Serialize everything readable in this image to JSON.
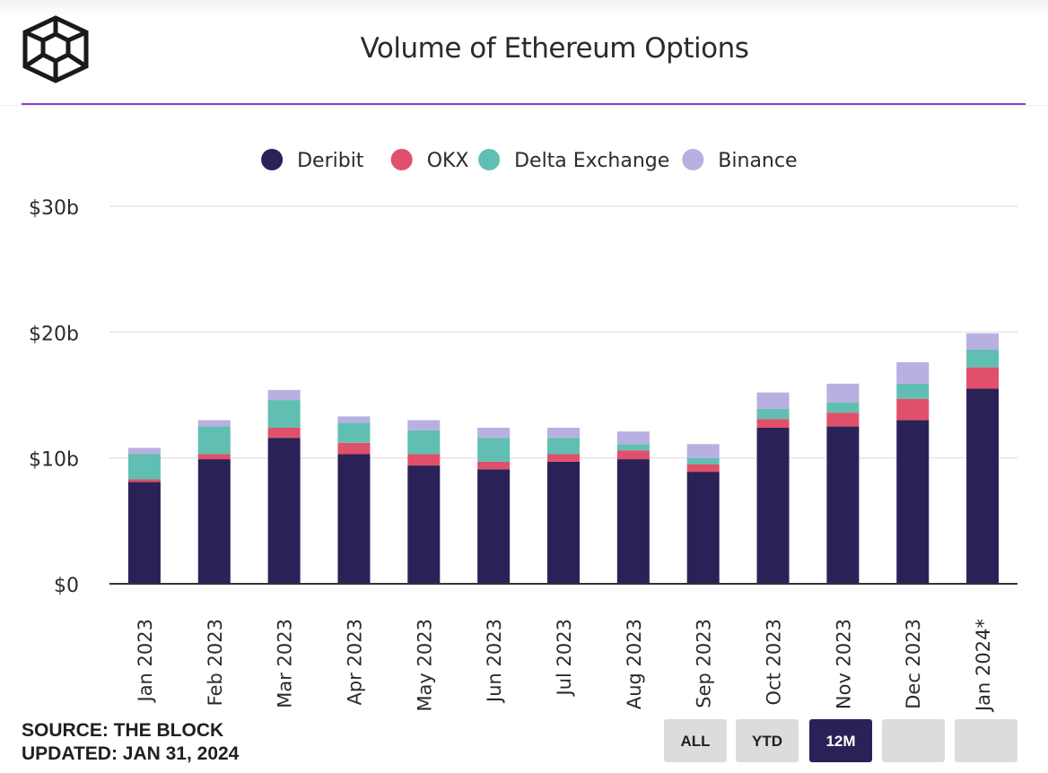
{
  "header": {
    "title": "Volume of Ethereum Options"
  },
  "logo": {
    "icon": "the-block-cube-logo"
  },
  "chart_data": {
    "type": "bar",
    "stacked": true,
    "title": "Volume of Ethereum Options",
    "categories": [
      "Jan 2023",
      "Feb 2023",
      "Mar 2023",
      "Apr 2023",
      "May 2023",
      "Jun 2023",
      "Jul 2023",
      "Aug 2023",
      "Sep 2023",
      "Oct 2023",
      "Nov 2023",
      "Dec 2023",
      "Jan 2024*"
    ],
    "series": [
      {
        "name": "Deribit",
        "color": "#2a2257",
        "values": [
          8.1,
          9.9,
          11.6,
          10.3,
          9.4,
          9.1,
          9.7,
          9.9,
          8.9,
          12.4,
          12.5,
          13.0,
          15.5
        ]
      },
      {
        "name": "OKX",
        "color": "#e0506a",
        "values": [
          0.2,
          0.4,
          0.8,
          0.9,
          0.9,
          0.6,
          0.6,
          0.7,
          0.6,
          0.7,
          1.1,
          1.7,
          1.7
        ]
      },
      {
        "name": "Delta Exchange",
        "color": "#60bfb2",
        "values": [
          2.0,
          2.2,
          2.2,
          1.6,
          1.9,
          1.9,
          1.3,
          0.5,
          0.5,
          0.8,
          0.8,
          1.2,
          1.4
        ]
      },
      {
        "name": "Binance",
        "color": "#b8b0e0",
        "values": [
          0.5,
          0.5,
          0.8,
          0.5,
          0.8,
          0.8,
          0.8,
          1.0,
          1.1,
          1.3,
          1.5,
          1.7,
          1.3
        ]
      }
    ],
    "yticks": [
      0,
      10,
      20,
      30
    ],
    "ytick_labels": [
      "$0",
      "$10b",
      "$20b",
      "$30b"
    ],
    "ylim": [
      0,
      30
    ],
    "xlabel": "",
    "ylabel": "",
    "grid": true,
    "legend_position": "top-center"
  },
  "footer": {
    "source": "SOURCE: THE BLOCK",
    "updated": "UPDATED: JAN 31, 2024"
  },
  "range_buttons": [
    {
      "label": "ALL",
      "active": false
    },
    {
      "label": "YTD",
      "active": false
    },
    {
      "label": "12M",
      "active": true
    },
    {
      "label": "",
      "active": false
    },
    {
      "label": "",
      "active": false
    }
  ]
}
